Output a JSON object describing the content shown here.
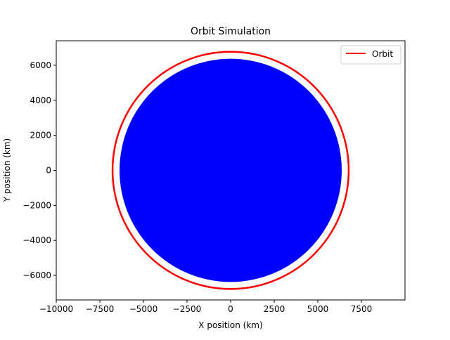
{
  "chart_data": {
    "type": "line",
    "title": "Orbit Simulation",
    "xlabel": "X position (km)",
    "ylabel": "Y position (km)",
    "xlim": [
      -10000,
      10000
    ],
    "ylim": [
      -7400,
      7400
    ],
    "xticks": [
      -10000,
      -7500,
      -5000,
      -2500,
      0,
      2500,
      5000,
      7500
    ],
    "yticks": [
      -6000,
      -4000,
      -2000,
      0,
      2000,
      4000,
      6000
    ],
    "xtick_labels": [
      "−10000",
      "−7500",
      "−5000",
      "−2500",
      "0",
      "2500",
      "5000",
      "7500"
    ],
    "ytick_labels": [
      "−6000",
      "−4000",
      "−2000",
      "0",
      "2000",
      "4000",
      "6000"
    ],
    "grid": false,
    "legend": {
      "position": "top-right",
      "entries": [
        "Orbit"
      ]
    },
    "planet": {
      "shape": "filled-circle",
      "center": [
        0,
        0
      ],
      "radius": 6371,
      "color": "#0000ff"
    },
    "series": [
      {
        "name": "Orbit",
        "color": "#ff0000",
        "shape": "circle",
        "center": [
          0,
          0
        ],
        "radius": 6771
      }
    ]
  }
}
